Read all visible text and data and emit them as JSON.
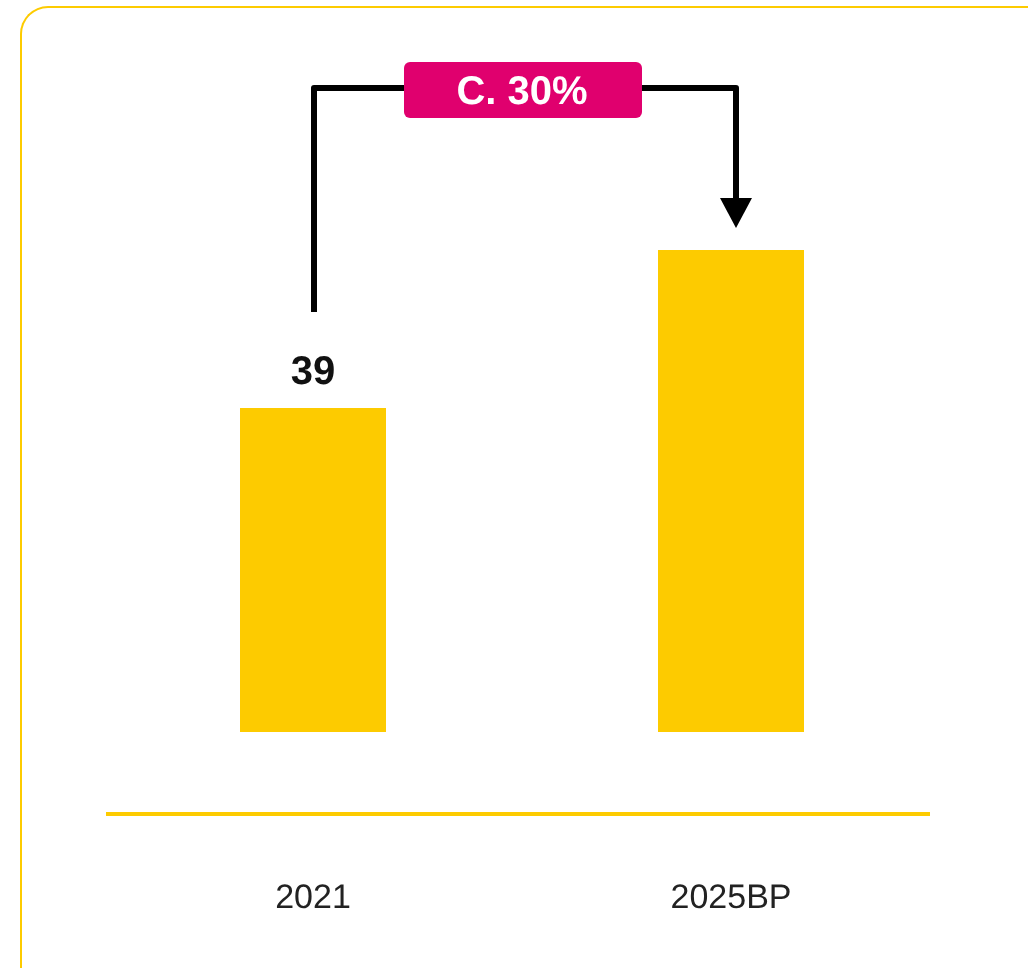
{
  "chart_data": {
    "type": "bar",
    "categories": [
      "2021",
      "2025BP"
    ],
    "values": [
      39,
      58
    ],
    "value_labels": [
      "39",
      null
    ],
    "color": "#fdcb00",
    "annotations": [
      "C. 30%"
    ],
    "legend": false,
    "grid": false
  }
}
